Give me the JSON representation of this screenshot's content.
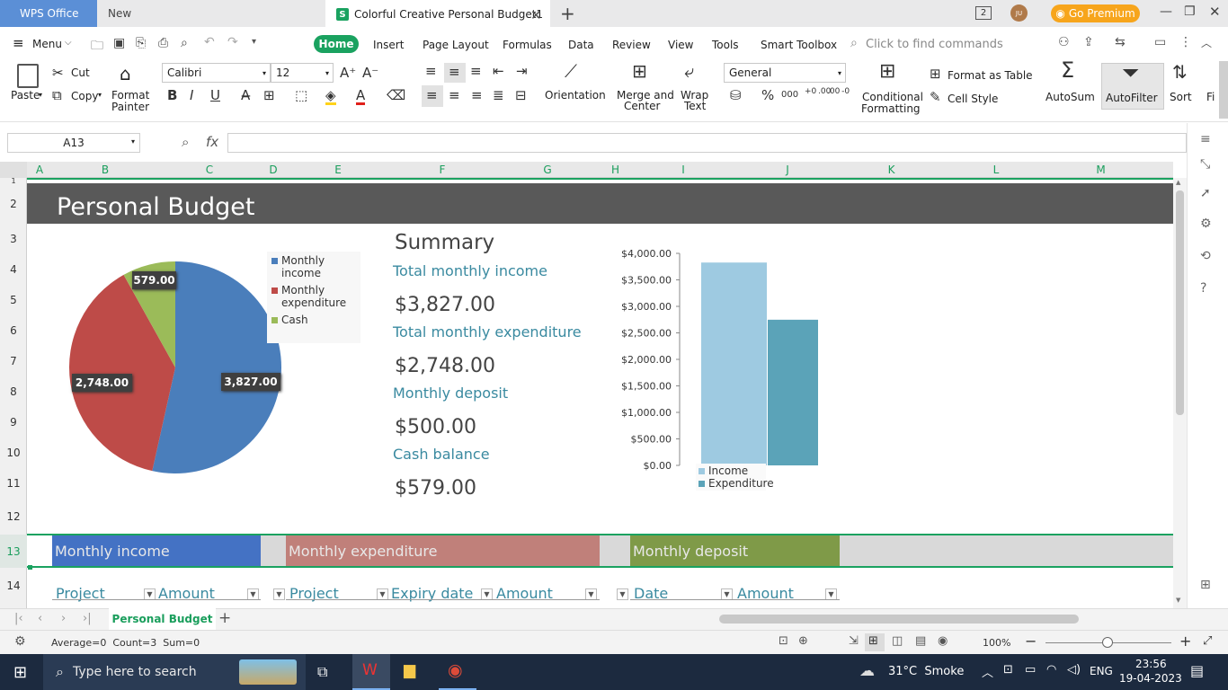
{
  "titlebar": {
    "tabs": [
      {
        "label": "WPS Office"
      },
      {
        "label": "New"
      },
      {
        "label": "Colorful Creative Personal Budget1"
      }
    ],
    "app_badge": "S",
    "go_premium": "Go Premium",
    "avatar": "JU",
    "window_count": "2"
  },
  "menu": {
    "menu_label": "Menu",
    "tabs": [
      "Home",
      "Insert",
      "Page Layout",
      "Formulas",
      "Data",
      "Review",
      "View",
      "Tools",
      "Smart Toolbox"
    ],
    "search_placeholder": "Click to find commands"
  },
  "ribbon": {
    "paste": "Paste",
    "cut": "Cut",
    "copy": "Copy",
    "format_painter_1": "Format",
    "format_painter_2": "Painter",
    "font_name": "Calibri",
    "font_size": "12",
    "orientation": "Orientation",
    "merge_1": "Merge and",
    "merge_2": "Center",
    "wrap_1": "Wrap",
    "wrap_2": "Text",
    "number_format": "General",
    "cond_1": "Conditional",
    "cond_2": "Formatting",
    "format_table": "Format as Table",
    "cell_style": "Cell Style",
    "autosum": "AutoSum",
    "autofilter": "AutoFilter",
    "sort": "Sort",
    "fill": "Fi",
    "percent": "%",
    "thousands": "000",
    "dec_inc": "+0 .00",
    "dec_dec": ".00 -0"
  },
  "formula_bar": {
    "name_box": "A13",
    "fx": "fx"
  },
  "columns": [
    "A",
    "B",
    "C",
    "D",
    "E",
    "F",
    "G",
    "H",
    "I",
    "J",
    "K",
    "L",
    "M"
  ],
  "rows": [
    "1",
    "2",
    "3",
    "4",
    "5",
    "6",
    "7",
    "8",
    "9",
    "10",
    "11",
    "12",
    "13",
    "14"
  ],
  "sheet": {
    "title": "Personal Budget",
    "summary": {
      "heading": "Summary",
      "items": [
        {
          "label": "Total monthly income",
          "value": "$3,827.00"
        },
        {
          "label": "Total monthly expenditure",
          "value": "$2,748.00"
        },
        {
          "label": "Monthly deposit",
          "value": "$500.00"
        },
        {
          "label": "Cash balance",
          "value": "$579.00"
        }
      ]
    },
    "bands": [
      {
        "label": "Monthly income",
        "color": "#4472c4"
      },
      {
        "label": "Monthly expenditure",
        "color": "#c0807a"
      },
      {
        "label": "Monthly deposit",
        "color": "#7f9a48"
      }
    ],
    "table_headers": {
      "income_project": "Project",
      "income_amount": "Amount",
      "exp_project": "Project",
      "exp_expiry": "Expiry date",
      "exp_amount": "Amount",
      "dep_date": "Date",
      "dep_amount": "Amount"
    }
  },
  "chart_data": [
    {
      "type": "pie",
      "categories": [
        "Monthly income",
        "Monthly expenditure",
        "Cash"
      ],
      "values": [
        3827,
        2748,
        579
      ],
      "data_labels": [
        "3,827.00",
        "2,748.00",
        "579.00"
      ],
      "colors": [
        "#4a7ebb",
        "#be4b48",
        "#9bbb59"
      ],
      "legend_position": "right"
    },
    {
      "type": "bar",
      "series": [
        {
          "name": "Income",
          "values": [
            3827
          ],
          "color": "#9ecae1"
        },
        {
          "name": "Expenditure",
          "values": [
            2748
          ],
          "color": "#5ba3b8"
        }
      ],
      "ylim": [
        0,
        4000
      ],
      "yticks": [
        "$0.00",
        "$500.00",
        "$1,000.00",
        "$1,500.00",
        "$2,000.00",
        "$2,500.00",
        "$3,000.00",
        "$3,500.00",
        "$4,000.00"
      ],
      "legend_position": "bottom"
    }
  ],
  "sheet_tabs": {
    "active": "Personal Budget",
    "add": "+"
  },
  "status": {
    "summary": "Average=0  Count=3  Sum=0",
    "zoom": "100%"
  },
  "taskbar": {
    "search_placeholder": "Type here to search",
    "weather": "31°C  Smoke",
    "language": "ENG",
    "time": "23:56",
    "date": "19-04-2023"
  }
}
